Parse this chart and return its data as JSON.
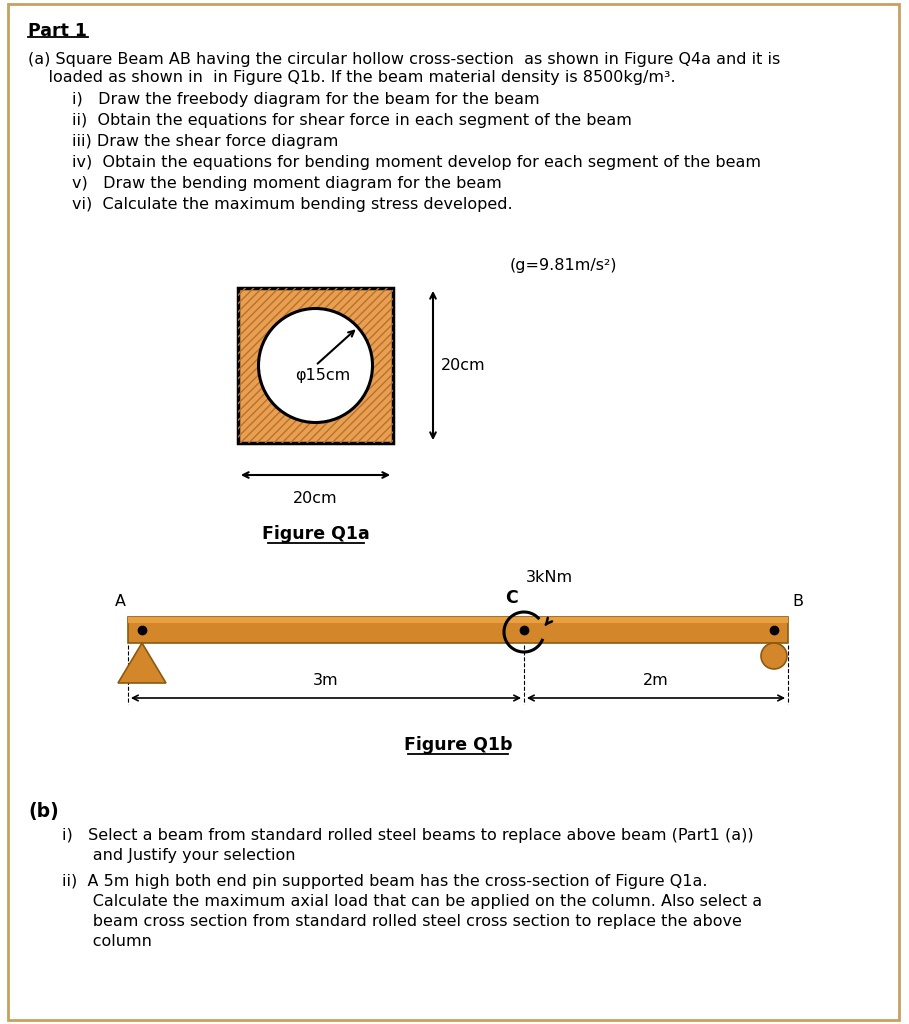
{
  "title": "Part 1",
  "background_color": "#ffffff",
  "border_color": "#c8a060",
  "part_a_line1": "(a) Square Beam AB having the circular hollow cross-section  as shown in Figure Q4a and it is",
  "part_a_line2": "    loaded as shown in  in Figure Q1b. If the beam material density is 8500kg/m³.",
  "sub_items_a": [
    "i)   Draw the freebody diagram for the beam for the beam",
    "ii)  Obtain the equations for shear force in each segment of the beam",
    "iii) Draw the shear force diagram",
    "iv)  Obtain the equations for bending moment develop for each segment of the beam",
    "v)   Draw the bending moment diagram for the beam",
    "vi)  Calculate the maximum bending stress developed."
  ],
  "gravity_text": "(g=9.81m/s²)",
  "cross_section_label": "φ15cm",
  "cross_section_dim": "20cm",
  "cross_section_width_label": "20cm",
  "figure_q1a_label": "Figure Q1a",
  "beam_color": "#d4872a",
  "hatch_color": "#e8a050",
  "figure_q1b_label": "Figure Q1b",
  "moment_label": "3kNm",
  "point_a_label": "A",
  "point_b_label": "B",
  "point_c_label": "C",
  "dim_3m": "3m",
  "dim_2m": "2m",
  "part_b_text": "(b)",
  "part_b_i": "i)   Select a beam from standard rolled steel beams to replace above beam (Part1 (a))",
  "part_b_i2": "      and Justify your selection",
  "part_b_ii": "ii)  A 5m high both end pin supported beam has the cross-section of Figure Q1a.",
  "part_b_ii2": "      Calculate the maximum axial load that can be applied on the column. Also select a",
  "part_b_ii3": "      beam cross section from standard rolled steel cross section to replace the above",
  "part_b_ii4": "      column"
}
